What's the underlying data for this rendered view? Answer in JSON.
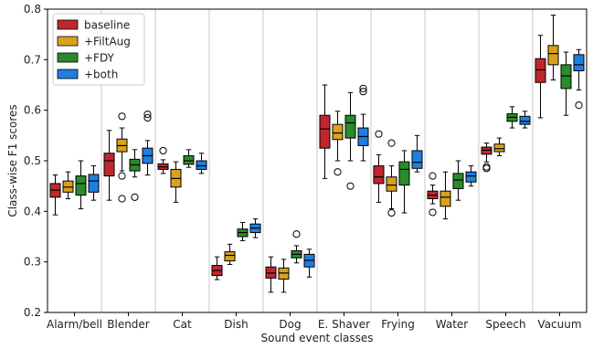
{
  "chart_data": {
    "type": "box",
    "xlabel": "Sound event classes",
    "ylabel": "Class-wise F1 scores",
    "ylim": [
      0.2,
      0.8
    ],
    "yticks": [
      "0.2",
      "0.3",
      "0.4",
      "0.5",
      "0.6",
      "0.7",
      "0.8"
    ],
    "categories": [
      "Alarm/bell",
      "Blender",
      "Cat",
      "Dish",
      "Dog",
      "E. Shaver",
      "Frying",
      "Water",
      "Speech",
      "Vacuum"
    ],
    "legend_position": "top-left",
    "grid": "vertical separators between classes",
    "series": [
      {
        "name": "baseline",
        "color": "#c0272d",
        "boxes": [
          {
            "whislo": 0.393,
            "q1": 0.428,
            "med": 0.442,
            "q3": 0.455,
            "whishi": 0.472,
            "fliers": []
          },
          {
            "whislo": 0.422,
            "q1": 0.47,
            "med": 0.5,
            "q3": 0.515,
            "whishi": 0.56,
            "fliers": []
          },
          {
            "whislo": 0.475,
            "q1": 0.483,
            "med": 0.488,
            "q3": 0.494,
            "whishi": 0.502,
            "fliers": [
              0.52
            ]
          },
          {
            "whislo": 0.265,
            "q1": 0.273,
            "med": 0.283,
            "q3": 0.293,
            "whishi": 0.31,
            "fliers": []
          },
          {
            "whislo": 0.24,
            "q1": 0.268,
            "med": 0.278,
            "q3": 0.29,
            "whishi": 0.31,
            "fliers": []
          },
          {
            "whislo": 0.465,
            "q1": 0.525,
            "med": 0.563,
            "q3": 0.59,
            "whishi": 0.65,
            "fliers": []
          },
          {
            "whislo": 0.418,
            "q1": 0.455,
            "med": 0.468,
            "q3": 0.49,
            "whishi": 0.512,
            "fliers": [
              0.553
            ]
          },
          {
            "whislo": 0.415,
            "q1": 0.425,
            "med": 0.432,
            "q3": 0.44,
            "whishi": 0.452,
            "fliers": [
              0.47,
              0.398
            ]
          },
          {
            "whislo": 0.498,
            "q1": 0.513,
            "med": 0.521,
            "q3": 0.527,
            "whishi": 0.535,
            "fliers": [
              0.488,
              0.485
            ]
          },
          {
            "whislo": 0.585,
            "q1": 0.655,
            "med": 0.68,
            "q3": 0.702,
            "whishi": 0.748,
            "fliers": []
          }
        ]
      },
      {
        "name": "+FiltAug",
        "color": "#d9a21c",
        "boxes": [
          {
            "whislo": 0.425,
            "q1": 0.438,
            "med": 0.448,
            "q3": 0.46,
            "whishi": 0.478,
            "fliers": []
          },
          {
            "whislo": 0.48,
            "q1": 0.518,
            "med": 0.53,
            "q3": 0.543,
            "whishi": 0.565,
            "fliers": [
              0.588,
              0.47,
              0.425
            ]
          },
          {
            "whislo": 0.418,
            "q1": 0.448,
            "med": 0.465,
            "q3": 0.483,
            "whishi": 0.498,
            "fliers": []
          },
          {
            "whislo": 0.295,
            "q1": 0.302,
            "med": 0.313,
            "q3": 0.32,
            "whishi": 0.335,
            "fliers": []
          },
          {
            "whislo": 0.24,
            "q1": 0.266,
            "med": 0.278,
            "q3": 0.288,
            "whishi": 0.305,
            "fliers": []
          },
          {
            "whislo": 0.5,
            "q1": 0.542,
            "med": 0.555,
            "q3": 0.572,
            "whishi": 0.598,
            "fliers": [
              0.478
            ]
          },
          {
            "whislo": 0.405,
            "q1": 0.44,
            "med": 0.452,
            "q3": 0.468,
            "whishi": 0.49,
            "fliers": [
              0.535,
              0.397
            ]
          },
          {
            "whislo": 0.385,
            "q1": 0.41,
            "med": 0.428,
            "q3": 0.44,
            "whishi": 0.478,
            "fliers": []
          },
          {
            "whislo": 0.51,
            "q1": 0.518,
            "med": 0.524,
            "q3": 0.533,
            "whishi": 0.545,
            "fliers": []
          },
          {
            "whislo": 0.66,
            "q1": 0.69,
            "med": 0.712,
            "q3": 0.728,
            "whishi": 0.788,
            "fliers": []
          }
        ]
      },
      {
        "name": "+FDY",
        "color": "#2b8a2b",
        "boxes": [
          {
            "whislo": 0.405,
            "q1": 0.432,
            "med": 0.455,
            "q3": 0.47,
            "whishi": 0.5,
            "fliers": []
          },
          {
            "whislo": 0.468,
            "q1": 0.48,
            "med": 0.492,
            "q3": 0.503,
            "whishi": 0.522,
            "fliers": [
              0.428
            ]
          },
          {
            "whislo": 0.487,
            "q1": 0.493,
            "med": 0.5,
            "q3": 0.51,
            "whishi": 0.522,
            "fliers": []
          },
          {
            "whislo": 0.342,
            "q1": 0.35,
            "med": 0.358,
            "q3": 0.365,
            "whishi": 0.378,
            "fliers": []
          },
          {
            "whislo": 0.298,
            "q1": 0.308,
            "med": 0.315,
            "q3": 0.322,
            "whishi": 0.332,
            "fliers": [
              0.355
            ]
          },
          {
            "whislo": 0.5,
            "q1": 0.545,
            "med": 0.575,
            "q3": 0.59,
            "whishi": 0.635,
            "fliers": [
              0.45
            ]
          },
          {
            "whislo": 0.397,
            "q1": 0.452,
            "med": 0.483,
            "q3": 0.498,
            "whishi": 0.52,
            "fliers": []
          },
          {
            "whislo": 0.422,
            "q1": 0.445,
            "med": 0.462,
            "q3": 0.475,
            "whishi": 0.5,
            "fliers": []
          },
          {
            "whislo": 0.565,
            "q1": 0.578,
            "med": 0.586,
            "q3": 0.593,
            "whishi": 0.607,
            "fliers": []
          },
          {
            "whislo": 0.59,
            "q1": 0.643,
            "med": 0.668,
            "q3": 0.69,
            "whishi": 0.715,
            "fliers": []
          }
        ]
      },
      {
        "name": "+both",
        "color": "#1f7fe0",
        "boxes": [
          {
            "whislo": 0.422,
            "q1": 0.438,
            "med": 0.46,
            "q3": 0.473,
            "whishi": 0.49,
            "fliers": []
          },
          {
            "whislo": 0.472,
            "q1": 0.495,
            "med": 0.51,
            "q3": 0.525,
            "whishi": 0.54,
            "fliers": [
              0.592,
              0.585
            ]
          },
          {
            "whislo": 0.475,
            "q1": 0.483,
            "med": 0.49,
            "q3": 0.5,
            "whishi": 0.515,
            "fliers": []
          },
          {
            "whislo": 0.348,
            "q1": 0.358,
            "med": 0.367,
            "q3": 0.375,
            "whishi": 0.385,
            "fliers": []
          },
          {
            "whislo": 0.27,
            "q1": 0.29,
            "med": 0.303,
            "q3": 0.315,
            "whishi": 0.325,
            "fliers": []
          },
          {
            "whislo": 0.5,
            "q1": 0.53,
            "med": 0.548,
            "q3": 0.565,
            "whishi": 0.592,
            "fliers": [
              0.643,
              0.637
            ]
          },
          {
            "whislo": 0.478,
            "q1": 0.485,
            "med": 0.497,
            "q3": 0.52,
            "whishi": 0.55,
            "fliers": []
          },
          {
            "whislo": 0.45,
            "q1": 0.458,
            "med": 0.47,
            "q3": 0.478,
            "whishi": 0.49,
            "fliers": []
          },
          {
            "whislo": 0.565,
            "q1": 0.572,
            "med": 0.578,
            "q3": 0.588,
            "whishi": 0.598,
            "fliers": []
          },
          {
            "whislo": 0.64,
            "q1": 0.678,
            "med": 0.69,
            "q3": 0.71,
            "whishi": 0.72,
            "fliers": [
              0.61
            ]
          }
        ]
      }
    ]
  }
}
